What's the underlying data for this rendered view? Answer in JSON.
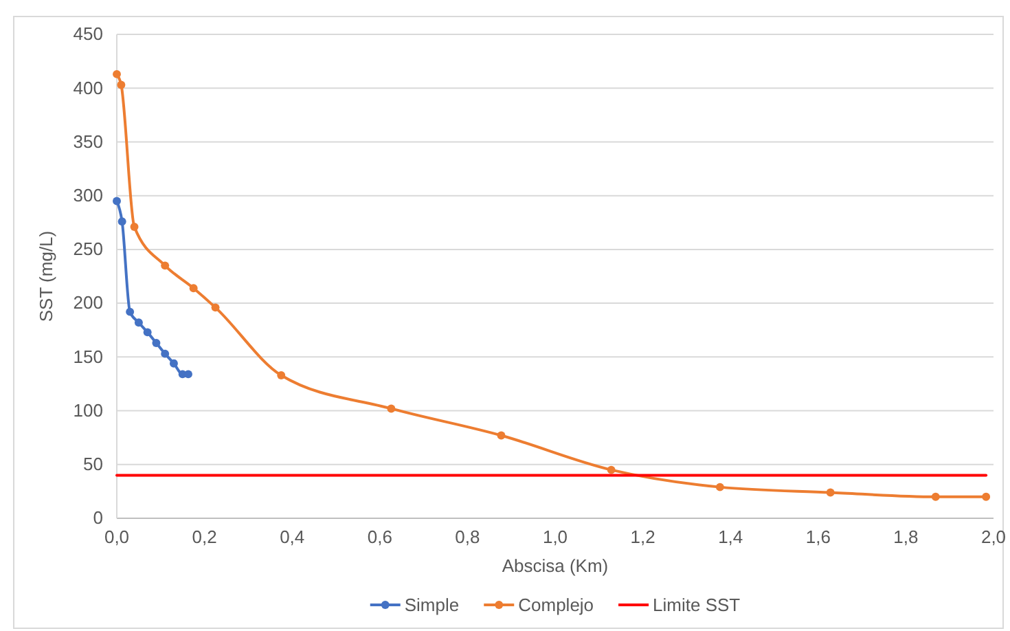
{
  "chart_data": {
    "type": "line",
    "xlabel": "Abscisa (Km)",
    "ylabel": "SST (mg/L)",
    "xlim": [
      0,
      2
    ],
    "xticks": [
      {
        "value": 0,
        "label": "0,0"
      },
      {
        "value": 0.2,
        "label": "0,2"
      },
      {
        "value": 0.4,
        "label": "0,4"
      },
      {
        "value": 0.6,
        "label": "0,6"
      },
      {
        "value": 0.8,
        "label": "0,8"
      },
      {
        "value": 1,
        "label": "1,0"
      },
      {
        "value": 1.2,
        "label": "1,2"
      },
      {
        "value": 1.4,
        "label": "1,4"
      },
      {
        "value": 1.6,
        "label": "1,6"
      },
      {
        "value": 1.8,
        "label": "1,8"
      },
      {
        "value": 2,
        "label": "2,0"
      }
    ],
    "ylim": [
      0,
      450
    ],
    "yticks": [
      0,
      50,
      100,
      150,
      200,
      250,
      300,
      350,
      400,
      450
    ],
    "grid": "y",
    "legend": "bottom",
    "marker": "circle",
    "series": [
      {
        "name": "Simple",
        "color": "#4472c4",
        "x": [
          0,
          0.012,
          0.03,
          0.05,
          0.07,
          0.09,
          0.11,
          0.13,
          0.15,
          0.163
        ],
        "values": [
          295,
          276,
          192,
          182,
          173,
          163,
          153,
          144,
          134,
          134
        ]
      },
      {
        "name": "Complejo",
        "color": "#ed7d31",
        "x": [
          0,
          0.01,
          0.04,
          0.11,
          0.175,
          0.225,
          0.375,
          0.626,
          0.877,
          1.128,
          1.376,
          1.628,
          1.868,
          1.983
        ],
        "values": [
          413,
          403,
          271,
          235,
          214,
          196,
          133,
          102,
          77,
          45,
          29,
          24,
          20,
          20
        ]
      },
      {
        "name": "Limite SST",
        "color": "#ff0000",
        "marker": "none",
        "x": [
          0,
          1.983
        ],
        "values": [
          40,
          40
        ]
      }
    ]
  }
}
